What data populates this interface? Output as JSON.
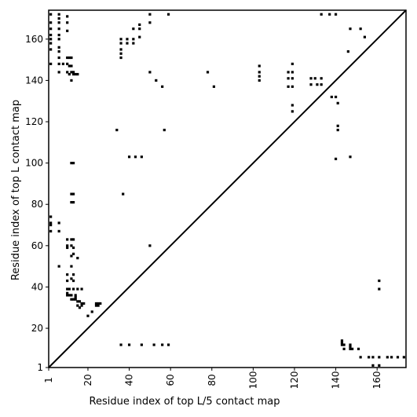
{
  "chart_data": {
    "type": "scatter",
    "title": "",
    "xlabel": "Residue index of top L/5 contact map",
    "ylabel": "Residue index of top L contact map",
    "xlim": [
      1,
      174
    ],
    "ylim": [
      1,
      174
    ],
    "x_ticks": [
      1,
      20,
      40,
      60,
      80,
      100,
      120,
      140,
      160
    ],
    "y_ticks": [
      1,
      20,
      40,
      60,
      80,
      100,
      120,
      140,
      160
    ],
    "x_tick_rotation_deg": -90,
    "grid": false,
    "legend": "none",
    "diagonal": true,
    "marker": "square",
    "series": [
      {
        "points_top_L": [
          [
            2,
            172
          ],
          [
            2,
            168
          ],
          [
            2,
            165
          ],
          [
            2,
            162
          ],
          [
            2,
            160
          ],
          [
            2,
            158
          ],
          [
            2,
            155
          ],
          [
            2,
            148
          ],
          [
            6,
            172
          ],
          [
            6,
            170
          ],
          [
            6,
            168
          ],
          [
            6,
            165
          ],
          [
            6,
            162
          ],
          [
            6,
            160
          ],
          [
            6,
            156
          ],
          [
            6,
            154
          ],
          [
            6,
            151
          ],
          [
            6,
            148
          ],
          [
            6,
            144
          ],
          [
            8,
            148
          ],
          [
            10,
            171
          ],
          [
            10,
            168
          ],
          [
            10,
            164
          ],
          [
            10,
            151
          ],
          [
            10,
            148
          ],
          [
            10,
            144
          ],
          [
            11,
            151
          ],
          [
            11,
            147
          ],
          [
            11,
            143
          ],
          [
            12,
            151
          ],
          [
            12,
            147
          ],
          [
            12,
            144
          ],
          [
            12,
            140
          ],
          [
            13,
            144
          ],
          [
            13,
            143
          ],
          [
            14,
            143
          ],
          [
            15,
            143
          ],
          [
            36,
            160
          ],
          [
            36,
            158
          ],
          [
            36,
            155
          ],
          [
            36,
            153
          ],
          [
            36,
            151
          ],
          [
            39,
            160
          ],
          [
            39,
            158
          ],
          [
            42,
            165
          ],
          [
            42,
            160
          ],
          [
            42,
            158
          ],
          [
            45,
            167
          ],
          [
            45,
            165
          ],
          [
            45,
            161
          ],
          [
            50,
            172
          ],
          [
            50,
            168
          ],
          [
            50,
            144
          ],
          [
            53,
            140
          ],
          [
            56,
            137
          ],
          [
            59,
            172
          ],
          [
            78,
            144
          ],
          [
            81,
            137
          ],
          [
            103,
            147
          ],
          [
            103,
            144
          ],
          [
            103,
            142
          ],
          [
            103,
            140
          ],
          [
            117,
            144
          ],
          [
            117,
            141
          ],
          [
            117,
            137
          ],
          [
            119,
            148
          ],
          [
            119,
            144
          ],
          [
            119,
            141
          ],
          [
            119,
            137
          ],
          [
            119,
            128
          ],
          [
            119,
            125
          ],
          [
            128,
            141
          ],
          [
            128,
            138
          ],
          [
            130,
            141
          ],
          [
            131,
            138
          ],
          [
            133,
            141
          ],
          [
            133,
            138
          ],
          [
            133,
            172
          ],
          [
            137,
            172
          ],
          [
            140,
            172
          ],
          [
            138,
            132
          ],
          [
            140,
            132
          ],
          [
            141,
            129
          ],
          [
            141,
            118
          ],
          [
            141,
            116
          ],
          [
            146,
            154
          ],
          [
            147,
            165
          ],
          [
            152,
            165
          ],
          [
            154,
            161
          ],
          [
            34,
            116
          ],
          [
            57,
            116
          ],
          [
            40,
            103
          ],
          [
            43,
            103
          ],
          [
            46,
            103
          ],
          [
            147,
            103
          ],
          [
            140,
            102
          ],
          [
            12,
            100
          ],
          [
            13,
            100
          ],
          [
            12,
            85
          ],
          [
            13,
            85
          ],
          [
            37,
            85
          ],
          [
            12,
            81
          ],
          [
            13,
            81
          ]
        ]
      },
      {
        "points_top_L5": [
          [
            2,
            74
          ],
          [
            2,
            71
          ],
          [
            2,
            70
          ],
          [
            2,
            67
          ],
          [
            6,
            71
          ],
          [
            6,
            67
          ],
          [
            10,
            63
          ],
          [
            10,
            60
          ],
          [
            10,
            59
          ],
          [
            12,
            63
          ],
          [
            13,
            63
          ],
          [
            12,
            60
          ],
          [
            13,
            59
          ],
          [
            13,
            56
          ],
          [
            12,
            55
          ],
          [
            15,
            54
          ],
          [
            6,
            50
          ],
          [
            12,
            50
          ],
          [
            10,
            46
          ],
          [
            13,
            46
          ],
          [
            12,
            44
          ],
          [
            10,
            43
          ],
          [
            13,
            43
          ],
          [
            50,
            60
          ],
          [
            10,
            39
          ],
          [
            11,
            39
          ],
          [
            13,
            39
          ],
          [
            15,
            39
          ],
          [
            17,
            39
          ],
          [
            10,
            37
          ],
          [
            10,
            36
          ],
          [
            11,
            36
          ],
          [
            12,
            36
          ],
          [
            14,
            36
          ],
          [
            12,
            34
          ],
          [
            13,
            34
          ],
          [
            14,
            34
          ],
          [
            15,
            33
          ],
          [
            16,
            33
          ],
          [
            17,
            32
          ],
          [
            18,
            32
          ],
          [
            15,
            31
          ],
          [
            17,
            31
          ],
          [
            16,
            30
          ],
          [
            14,
            35
          ],
          [
            24,
            32
          ],
          [
            25,
            32
          ],
          [
            26,
            32
          ],
          [
            24,
            31
          ],
          [
            25,
            31
          ],
          [
            22,
            28
          ],
          [
            20,
            26
          ],
          [
            36,
            12
          ],
          [
            40,
            12
          ],
          [
            46,
            12
          ],
          [
            52,
            12
          ],
          [
            56,
            12
          ],
          [
            59,
            12
          ],
          [
            143,
            14
          ],
          [
            143,
            13
          ],
          [
            143,
            12
          ],
          [
            144,
            12
          ],
          [
            147,
            12
          ],
          [
            147,
            11
          ],
          [
            144,
            10
          ],
          [
            147,
            10
          ],
          [
            148,
            10
          ],
          [
            151,
            10
          ],
          [
            152,
            6
          ],
          [
            156,
            6
          ],
          [
            158,
            6
          ],
          [
            161,
            6
          ],
          [
            165,
            6
          ],
          [
            167,
            6
          ],
          [
            170,
            6
          ],
          [
            173,
            6
          ],
          [
            158,
            2
          ],
          [
            161,
            2
          ],
          [
            161,
            43
          ],
          [
            161,
            39
          ]
        ]
      }
    ]
  }
}
